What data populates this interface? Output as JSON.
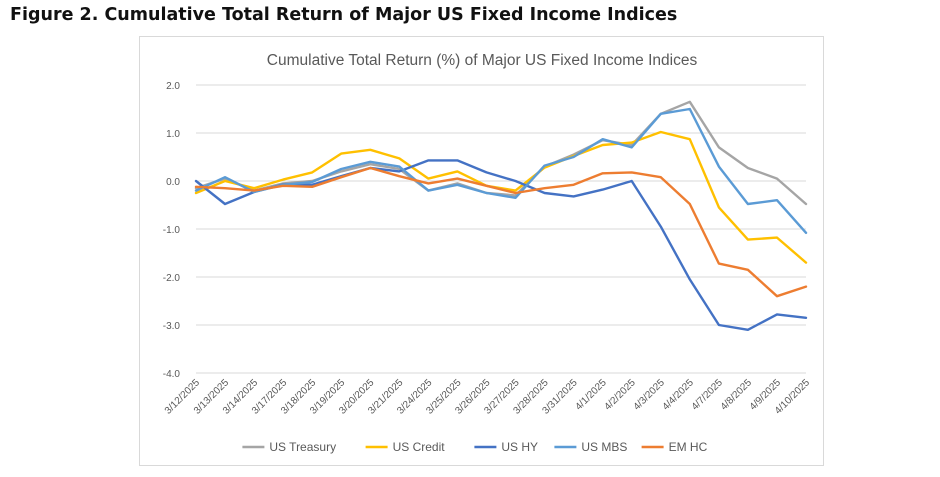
{
  "figure_title": "Figure 2. Cumulative Total Return of Major US Fixed Income Indices",
  "chart_data": {
    "type": "line",
    "title": "Cumulative Total Return (%) of Major US Fixed Income Indices",
    "xlabel": "",
    "ylabel": "",
    "ylim": [
      -4.0,
      2.0
    ],
    "yticks": [
      "2.0",
      "1.0",
      "0.0",
      "-1.0",
      "-2.0",
      "-3.0",
      "-4.0"
    ],
    "grid": true,
    "legend_position": "bottom",
    "categories": [
      "3/12/2025",
      "3/13/2025",
      "3/14/2025",
      "3/17/2025",
      "3/18/2025",
      "3/19/2025",
      "3/20/2025",
      "3/21/2025",
      "3/24/2025",
      "3/25/2025",
      "3/26/2025",
      "3/27/2025",
      "3/28/2025",
      "3/31/2025",
      "4/1/2025",
      "4/2/2025",
      "4/3/2025",
      "4/4/2025",
      "4/7/2025",
      "4/8/2025",
      "4/9/2025",
      "4/10/2025"
    ],
    "series": [
      {
        "name": "US Treasury",
        "color": "#a5a5a5",
        "values": [
          -0.15,
          0.05,
          -0.2,
          -0.05,
          0.0,
          0.2,
          0.35,
          0.25,
          -0.2,
          -0.05,
          -0.25,
          -0.3,
          0.3,
          0.55,
          0.85,
          0.75,
          1.4,
          1.65,
          0.7,
          0.27,
          0.05,
          -0.48
        ]
      },
      {
        "name": "US Credit",
        "color": "#ffc000",
        "values": [
          -0.25,
          0.0,
          -0.15,
          0.03,
          0.18,
          0.57,
          0.65,
          0.47,
          0.05,
          0.2,
          -0.1,
          -0.2,
          0.28,
          0.52,
          0.75,
          0.8,
          1.02,
          0.87,
          -0.55,
          -1.22,
          -1.18,
          -1.7
        ]
      },
      {
        "name": "US HY",
        "color": "#4472c4",
        "values": [
          0.0,
          -0.48,
          -0.23,
          -0.07,
          -0.08,
          0.1,
          0.27,
          0.2,
          0.43,
          0.43,
          0.18,
          0.0,
          -0.25,
          -0.32,
          -0.18,
          0.0,
          -0.95,
          -2.05,
          -3.0,
          -3.1,
          -2.78,
          -2.85
        ]
      },
      {
        "name": "US MBS",
        "color": "#5b9bd5",
        "values": [
          -0.2,
          0.08,
          -0.23,
          -0.08,
          -0.02,
          0.25,
          0.4,
          0.3,
          -0.2,
          -0.08,
          -0.25,
          -0.35,
          0.32,
          0.5,
          0.87,
          0.7,
          1.4,
          1.5,
          0.3,
          -0.48,
          -0.4,
          -1.08
        ]
      },
      {
        "name": "EM HC",
        "color": "#ed7d31",
        "values": [
          -0.12,
          -0.15,
          -0.2,
          -0.1,
          -0.12,
          0.08,
          0.27,
          0.1,
          -0.05,
          0.05,
          -0.1,
          -0.25,
          -0.15,
          -0.08,
          0.16,
          0.18,
          0.08,
          -0.48,
          -1.72,
          -1.85,
          -2.4,
          -2.2
        ]
      }
    ]
  }
}
